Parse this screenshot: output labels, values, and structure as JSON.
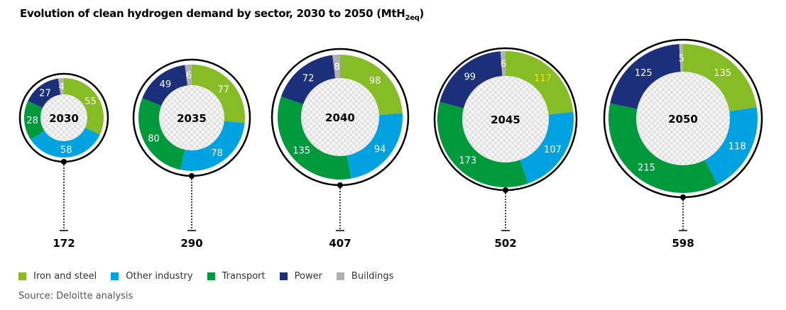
{
  "chart_data": {
    "type": "donut",
    "title": "Evolution of clean hydrogen demand by sector, 2030 to 2050 (MtH",
    "title_sub": "2eq",
    "title_close": ")",
    "sectors": [
      "Iron and steel",
      "Other industry",
      "Transport",
      "Power",
      "Buildings"
    ],
    "colors": [
      "#86bc25",
      "#00a3e0",
      "#009a3d",
      "#1b2f7a",
      "#b1b1b1"
    ],
    "years": [
      {
        "year": "2030",
        "values": [
          55,
          58,
          28,
          27,
          4
        ],
        "total": "172"
      },
      {
        "year": "2035",
        "values": [
          77,
          78,
          80,
          49,
          6
        ],
        "total": "290"
      },
      {
        "year": "2040",
        "values": [
          98,
          94,
          135,
          72,
          8
        ],
        "total": "407"
      },
      {
        "year": "2045",
        "values": [
          117,
          107,
          173,
          99,
          6
        ],
        "total": "502"
      },
      {
        "year": "2050",
        "values": [
          135,
          118,
          215,
          125,
          5
        ],
        "total": "598"
      }
    ],
    "legend_placement": "bottom-left"
  },
  "source": "Source: Deloitte analysis"
}
